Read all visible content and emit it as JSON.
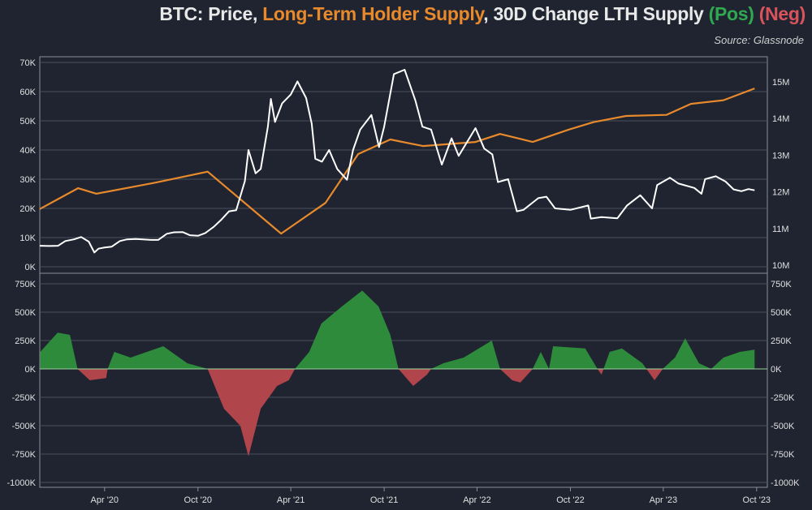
{
  "title": {
    "part1": "BTC: Price, ",
    "part2": "Long-Term Holder Supply",
    "part3": ", 30D Change LTH Supply ",
    "part4": "(Pos)",
    "part5": " (Neg)"
  },
  "source": "Source: Glassnode",
  "colors": {
    "background": "#1f2430",
    "price": "#ffffff",
    "lth_supply": "#e88a2c",
    "positive": "#2e8b3c",
    "negative": "#b0454c",
    "grid": "#4a505c"
  },
  "chart_data": [
    {
      "type": "line",
      "panel": "top",
      "x_range": [
        "2019-11-26",
        "2023-10-22"
      ],
      "x_ticks": [
        "Apr '20",
        "Oct '20",
        "Apr '21",
        "Oct '21",
        "Apr '22",
        "Oct '22",
        "Apr '23",
        "Oct '23"
      ],
      "x_tick_dates": [
        "2020-04-01",
        "2020-10-01",
        "2021-04-01",
        "2021-10-01",
        "2022-04-01",
        "2022-10-01",
        "2023-04-01",
        "2023-10-01"
      ],
      "left_axis": {
        "ylim": [
          0,
          70
        ],
        "ticks": [
          0,
          10,
          20,
          30,
          40,
          50,
          60,
          70
        ],
        "tick_labels": [
          "0K",
          "10K",
          "20K",
          "30K",
          "40K",
          "50K",
          "60K",
          "70K"
        ]
      },
      "right_axis": {
        "ylim": [
          10,
          15
        ],
        "ticks": [
          10,
          11,
          12,
          13,
          14,
          15
        ],
        "tick_labels": [
          "10M",
          "11M",
          "12M",
          "13M",
          "14M",
          "15M"
        ]
      },
      "grid": true,
      "series": [
        {
          "name": "Price",
          "axis": "left",
          "color": "#ffffff",
          "points": [
            [
              "2019-11-26",
              7.2
            ],
            [
              "2019-12-15",
              7.1
            ],
            [
              "2020-01-01",
              7.2
            ],
            [
              "2020-01-15",
              8.8
            ],
            [
              "2020-02-01",
              9.4
            ],
            [
              "2020-02-15",
              10.2
            ],
            [
              "2020-03-01",
              8.6
            ],
            [
              "2020-03-12",
              4.9
            ],
            [
              "2020-03-20",
              6.2
            ],
            [
              "2020-04-01",
              6.6
            ],
            [
              "2020-04-15",
              6.9
            ],
            [
              "2020-05-01",
              8.8
            ],
            [
              "2020-05-15",
              9.4
            ],
            [
              "2020-06-01",
              9.5
            ],
            [
              "2020-06-15",
              9.4
            ],
            [
              "2020-07-01",
              9.2
            ],
            [
              "2020-07-15",
              9.2
            ],
            [
              "2020-08-01",
              11.3
            ],
            [
              "2020-08-15",
              11.8
            ],
            [
              "2020-09-01",
              11.9
            ],
            [
              "2020-09-15",
              10.8
            ],
            [
              "2020-10-01",
              10.6
            ],
            [
              "2020-10-15",
              11.5
            ],
            [
              "2020-11-01",
              13.7
            ],
            [
              "2020-11-15",
              16.0
            ],
            [
              "2020-12-01",
              19.0
            ],
            [
              "2020-12-15",
              19.4
            ],
            [
              "2021-01-01",
              29.4
            ],
            [
              "2021-01-08",
              40.0
            ],
            [
              "2021-01-22",
              32.0
            ],
            [
              "2021-02-01",
              33.5
            ],
            [
              "2021-02-15",
              48.0
            ],
            [
              "2021-02-21",
              57.5
            ],
            [
              "2021-03-01",
              49.6
            ],
            [
              "2021-03-15",
              56.0
            ],
            [
              "2021-04-01",
              59.0
            ],
            [
              "2021-04-14",
              63.5
            ],
            [
              "2021-05-01",
              57.8
            ],
            [
              "2021-05-12",
              49.0
            ],
            [
              "2021-05-19",
              37.0
            ],
            [
              "2021-06-01",
              36.0
            ],
            [
              "2021-06-15",
              40.0
            ],
            [
              "2021-07-01",
              33.5
            ],
            [
              "2021-07-20",
              29.8
            ],
            [
              "2021-08-01",
              40.0
            ],
            [
              "2021-08-15",
              47.0
            ],
            [
              "2021-09-06",
              52.0
            ],
            [
              "2021-09-21",
              41.0
            ],
            [
              "2021-10-01",
              48.0
            ],
            [
              "2021-10-20",
              66.0
            ],
            [
              "2021-11-10",
              67.5
            ],
            [
              "2021-12-01",
              57.0
            ],
            [
              "2021-12-15",
              48.0
            ],
            [
              "2022-01-01",
              47.0
            ],
            [
              "2022-01-22",
              35.0
            ],
            [
              "2022-02-10",
              44.0
            ],
            [
              "2022-02-24",
              38.0
            ],
            [
              "2022-03-29",
              47.5
            ],
            [
              "2022-04-15",
              40.5
            ],
            [
              "2022-05-01",
              38.5
            ],
            [
              "2022-05-12",
              29.0
            ],
            [
              "2022-06-01",
              30.0
            ],
            [
              "2022-06-18",
              19.0
            ],
            [
              "2022-07-01",
              19.5
            ],
            [
              "2022-07-30",
              23.5
            ],
            [
              "2022-08-15",
              24.0
            ],
            [
              "2022-09-01",
              20.0
            ],
            [
              "2022-10-01",
              19.5
            ],
            [
              "2022-11-05",
              21.0
            ],
            [
              "2022-11-10",
              16.5
            ],
            [
              "2022-12-01",
              17.0
            ],
            [
              "2023-01-01",
              16.6
            ],
            [
              "2023-01-20",
              21.0
            ],
            [
              "2023-02-15",
              24.5
            ],
            [
              "2023-03-10",
              20.0
            ],
            [
              "2023-03-20",
              28.0
            ],
            [
              "2023-04-14",
              30.5
            ],
            [
              "2023-05-01",
              28.5
            ],
            [
              "2023-06-01",
              27.0
            ],
            [
              "2023-06-15",
              25.0
            ],
            [
              "2023-06-22",
              30.0
            ],
            [
              "2023-07-13",
              31.0
            ],
            [
              "2023-08-01",
              29.2
            ],
            [
              "2023-08-17",
              26.5
            ],
            [
              "2023-09-01",
              25.9
            ],
            [
              "2023-09-15",
              26.6
            ],
            [
              "2023-09-27",
              26.2
            ]
          ]
        },
        {
          "name": "Long-Term Holder Supply",
          "axis": "right",
          "color": "#e88a2c",
          "points": [
            [
              "2019-11-26",
              11.53
            ],
            [
              "2020-02-09",
              12.1
            ],
            [
              "2020-03-16",
              11.95
            ],
            [
              "2020-07-09",
              12.25
            ],
            [
              "2020-10-20",
              12.55
            ],
            [
              "2021-03-13",
              10.86
            ],
            [
              "2021-06-08",
              11.7
            ],
            [
              "2021-08-11",
              13.03
            ],
            [
              "2021-10-13",
              13.43
            ],
            [
              "2021-12-16",
              13.25
            ],
            [
              "2022-03-29",
              13.36
            ],
            [
              "2022-05-16",
              13.58
            ],
            [
              "2022-07-19",
              13.36
            ],
            [
              "2022-09-28",
              13.7
            ],
            [
              "2022-11-15",
              13.9
            ],
            [
              "2023-01-18",
              14.07
            ],
            [
              "2023-04-07",
              14.1
            ],
            [
              "2023-05-25",
              14.4
            ],
            [
              "2023-07-28",
              14.5
            ],
            [
              "2023-09-27",
              14.82
            ]
          ]
        }
      ]
    },
    {
      "type": "area",
      "panel": "bottom",
      "ylim": [
        -1000,
        750
      ],
      "ticks": [
        -1000,
        -750,
        -500,
        -250,
        0,
        250,
        500,
        750
      ],
      "tick_labels": [
        "-1000K",
        "-750K",
        "-500K",
        "-250K",
        "0K",
        "250K",
        "500K",
        "750K"
      ],
      "grid": true,
      "series": [
        {
          "name": "30D Change LTH Supply",
          "points": [
            [
              "2019-11-27",
              150
            ],
            [
              "2019-12-31",
              320
            ],
            [
              "2020-01-24",
              300
            ],
            [
              "2020-02-08",
              0
            ],
            [
              "2020-03-03",
              -100
            ],
            [
              "2020-04-04",
              -80
            ],
            [
              "2020-04-07",
              0
            ],
            [
              "2020-04-20",
              150
            ],
            [
              "2020-05-22",
              100
            ],
            [
              "2020-07-25",
              200
            ],
            [
              "2020-09-10",
              50
            ],
            [
              "2020-10-20",
              0
            ],
            [
              "2020-11-21",
              -350
            ],
            [
              "2020-12-23",
              -500
            ],
            [
              "2021-01-08",
              -770
            ],
            [
              "2021-02-01",
              -350
            ],
            [
              "2021-03-05",
              -150
            ],
            [
              "2021-03-28",
              -100
            ],
            [
              "2021-04-09",
              0
            ],
            [
              "2021-05-07",
              150
            ],
            [
              "2021-05-31",
              400
            ],
            [
              "2021-07-10",
              550
            ],
            [
              "2021-08-19",
              690
            ],
            [
              "2021-09-20",
              550
            ],
            [
              "2021-10-13",
              300
            ],
            [
              "2021-10-29",
              0
            ],
            [
              "2021-11-27",
              -150
            ],
            [
              "2021-12-24",
              -50
            ],
            [
              "2022-01-01",
              0
            ],
            [
              "2022-01-25",
              50
            ],
            [
              "2022-03-06",
              100
            ],
            [
              "2022-04-30",
              250
            ],
            [
              "2022-05-16",
              0
            ],
            [
              "2022-06-09",
              -100
            ],
            [
              "2022-06-25",
              -120
            ],
            [
              "2022-07-19",
              0
            ],
            [
              "2022-08-04",
              150
            ],
            [
              "2022-08-20",
              0
            ],
            [
              "2022-08-28",
              200
            ],
            [
              "2022-10-30",
              180
            ],
            [
              "2022-11-23",
              0
            ],
            [
              "2022-12-01",
              -50
            ],
            [
              "2022-12-17",
              150
            ],
            [
              "2023-01-10",
              180
            ],
            [
              "2023-02-19",
              50
            ],
            [
              "2023-03-15",
              -100
            ],
            [
              "2023-03-31",
              0
            ],
            [
              "2023-04-24",
              100
            ],
            [
              "2023-05-14",
              270
            ],
            [
              "2023-06-10",
              50
            ],
            [
              "2023-07-04",
              0
            ],
            [
              "2023-07-28",
              100
            ],
            [
              "2023-08-29",
              150
            ],
            [
              "2023-09-27",
              170
            ]
          ]
        }
      ]
    }
  ]
}
